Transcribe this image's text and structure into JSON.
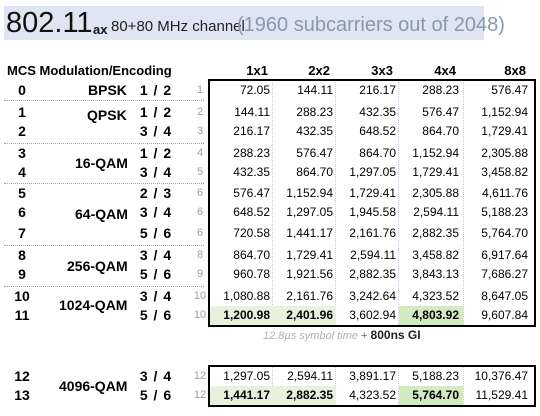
{
  "banner": {
    "standard": "802.11",
    "suffix": "ax",
    "channel": "80+80 MHz channel",
    "subcarriers": "(1960 subcarriers out of 2048)"
  },
  "table": {
    "mcs_header": "MCS Modulation/Encoding",
    "columns": [
      "1x1",
      "2x2",
      "3x3",
      "4x4",
      "8x8"
    ],
    "modulation_labels": [
      "BPSK",
      "QPSK",
      "16-QAM",
      "64-QAM",
      "256-QAM",
      "1024-QAM",
      "4096-QAM"
    ],
    "rows": [
      {
        "mcs": "0",
        "coding": "1 / 2",
        "idx": "1",
        "values": [
          "72.05",
          "144.11",
          "216.17",
          "288.23",
          "576.47"
        ]
      },
      {
        "mcs": "1",
        "coding": "1 / 2",
        "idx": "2",
        "values": [
          "144.11",
          "288.23",
          "432.35",
          "576.47",
          "1,152.94"
        ]
      },
      {
        "mcs": "2",
        "coding": "3 / 4",
        "idx": "3",
        "values": [
          "216.17",
          "432.35",
          "648.52",
          "864.70",
          "1,729.41"
        ]
      },
      {
        "mcs": "3",
        "coding": "1 / 2",
        "idx": "4",
        "values": [
          "288.23",
          "576.47",
          "864.70",
          "1,152.94",
          "2,305.88"
        ]
      },
      {
        "mcs": "4",
        "coding": "3 / 4",
        "idx": "5",
        "values": [
          "432.35",
          "864.70",
          "1,297.05",
          "1,729.41",
          "3,458.82"
        ]
      },
      {
        "mcs": "5",
        "coding": "2 / 3",
        "idx": "6",
        "values": [
          "576.47",
          "1,152.94",
          "1,729.41",
          "2,305.88",
          "4,611.76"
        ]
      },
      {
        "mcs": "6",
        "coding": "3 / 4",
        "idx": "6",
        "values": [
          "648.52",
          "1,297.05",
          "1,945.58",
          "2,594.11",
          "5,188.23"
        ]
      },
      {
        "mcs": "7",
        "coding": "5 / 6",
        "idx": "6",
        "values": [
          "720.58",
          "1,441.17",
          "2,161.76",
          "2,882.35",
          "5,764.70"
        ]
      },
      {
        "mcs": "8",
        "coding": "3 / 4",
        "idx": "8",
        "values": [
          "864.70",
          "1,729.41",
          "2,594.11",
          "3,458.82",
          "6,917.64"
        ]
      },
      {
        "mcs": "9",
        "coding": "5 / 6",
        "idx": "9",
        "values": [
          "960.78",
          "1,921.56",
          "2,882.35",
          "3,843.13",
          "7,686.27"
        ]
      },
      {
        "mcs": "10",
        "coding": "3 / 4",
        "idx": "10",
        "values": [
          "1,080.88",
          "2,161.76",
          "3,242.64",
          "4,323.52",
          "8,647.05"
        ]
      },
      {
        "mcs": "11",
        "coding": "5 / 6",
        "idx": "10",
        "values": [
          "1,200.98",
          "2,401.96",
          "3,602.94",
          "4,803.92",
          "9,607.84"
        ]
      }
    ],
    "extra_rows": [
      {
        "mcs": "12",
        "coding": "3 / 4",
        "idx": "12",
        "values": [
          "1,297.05",
          "2,594.11",
          "3,891.17",
          "5,188.23",
          "10,376.47"
        ]
      },
      {
        "mcs": "13",
        "coding": "5 / 6",
        "idx": "12",
        "values": [
          "1,441.17",
          "2,882.35",
          "4,323.52",
          "5,764.70",
          "11,529.41"
        ]
      }
    ]
  },
  "footnote": {
    "symbol_time": "12.8µs symbol time",
    "plus": "+",
    "guard_interval": "800ns GI"
  },
  "colors": {
    "banner_bg": "#dde6f2",
    "highlight_light": "#e6f2dd",
    "highlight_strong": "#d4eac2",
    "subtitle_gray": "#8a98ad"
  }
}
